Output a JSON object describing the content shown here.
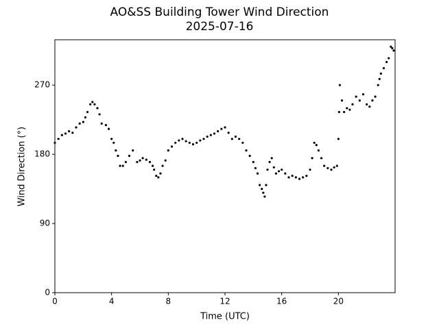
{
  "chart_data": {
    "type": "scatter",
    "title": "AO&SS Building Tower Wind Direction",
    "subtitle": "2025-07-16",
    "xlabel": "Time (UTC)",
    "ylabel": "Wind Direction (°)",
    "color": "#000000",
    "xlim": [
      0,
      24
    ],
    "xticks": [
      0,
      4,
      8,
      12,
      16,
      20
    ],
    "ylim": [
      0,
      329
    ],
    "yticks": [
      0,
      90,
      180,
      270
    ],
    "x": [
      0,
      0.25,
      0.5,
      0.75,
      1,
      1.25,
      1.5,
      1.75,
      2,
      2.15,
      2.3,
      2.5,
      2.65,
      2.8,
      3,
      3.15,
      3.3,
      3.6,
      3.8,
      4,
      4.15,
      4.3,
      4.45,
      4.6,
      4.8,
      5,
      5.25,
      5.5,
      5.8,
      6,
      6.2,
      6.45,
      6.7,
      6.9,
      7,
      7.15,
      7.3,
      7.45,
      7.6,
      7.8,
      8,
      8.25,
      8.5,
      8.75,
      9,
      9.25,
      9.5,
      9.75,
      10,
      10.25,
      10.5,
      10.75,
      11,
      11.25,
      11.5,
      11.75,
      12,
      12.25,
      12.5,
      12.75,
      13,
      13.25,
      13.5,
      13.75,
      14,
      14.15,
      14.3,
      14.45,
      14.6,
      14.7,
      14.8,
      14.9,
      15,
      15.15,
      15.3,
      15.45,
      15.6,
      15.8,
      16,
      16.25,
      16.5,
      16.75,
      17,
      17.25,
      17.5,
      17.75,
      18,
      18.15,
      18.3,
      18.45,
      18.6,
      18.8,
      19,
      19.25,
      19.5,
      19.7,
      19.9,
      20,
      20.05,
      20.1,
      20.25,
      20.4,
      20.6,
      20.8,
      21,
      21.25,
      21.5,
      21.75,
      22,
      22.2,
      22.4,
      22.6,
      22.8,
      22.9,
      23,
      23.2,
      23.4,
      23.55,
      23.7,
      23.8,
      23.9
    ],
    "values": [
      195,
      200,
      205,
      207,
      210,
      208,
      215,
      220,
      222,
      228,
      235,
      245,
      248,
      245,
      240,
      232,
      220,
      218,
      213,
      200,
      195,
      185,
      178,
      165,
      165,
      170,
      178,
      185,
      170,
      172,
      175,
      173,
      170,
      165,
      160,
      152,
      150,
      155,
      165,
      172,
      185,
      190,
      195,
      198,
      200,
      197,
      195,
      193,
      195,
      198,
      200,
      203,
      205,
      207,
      210,
      213,
      215,
      208,
      200,
      203,
      200,
      195,
      185,
      178,
      170,
      162,
      155,
      140,
      135,
      130,
      125,
      140,
      160,
      170,
      175,
      163,
      155,
      158,
      160,
      155,
      150,
      152,
      150,
      148,
      150,
      152,
      160,
      175,
      195,
      192,
      185,
      175,
      165,
      162,
      160,
      163,
      165,
      200,
      235,
      270,
      250,
      235,
      240,
      238,
      245,
      255,
      250,
      258,
      245,
      242,
      250,
      255,
      270,
      278,
      285,
      292,
      300,
      305,
      320,
      318,
      315
    ]
  }
}
